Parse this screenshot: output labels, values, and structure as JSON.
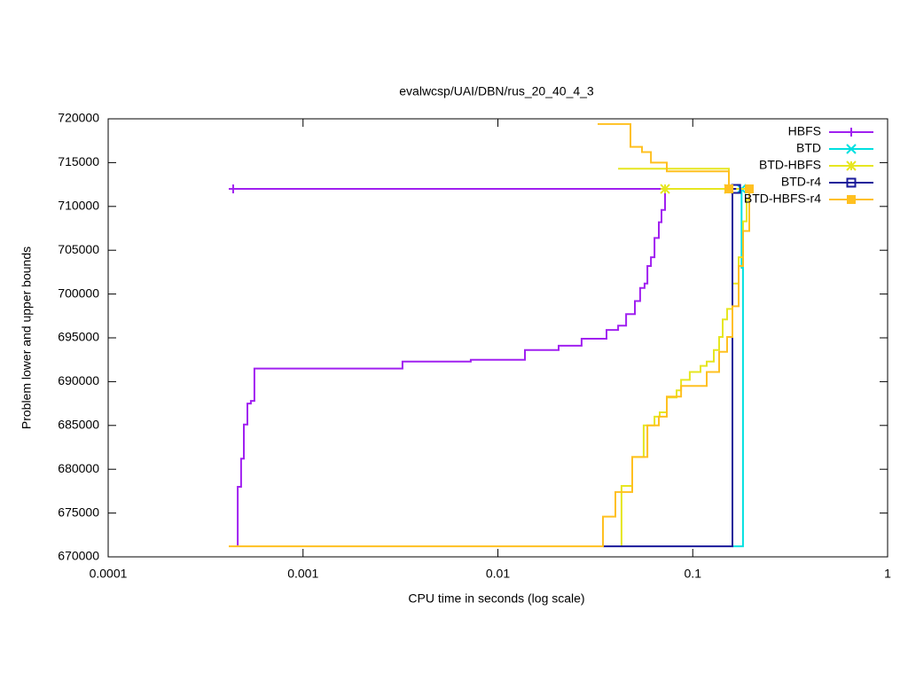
{
  "chart_data": {
    "type": "line",
    "title": "evalwcsp/UAI/DBN/rus_20_40_4_3",
    "x_label": "CPU time in seconds (log scale)",
    "y_label": "Problem lower and upper bounds",
    "x_log": true,
    "xlim": [
      0.0001,
      1
    ],
    "xticks": [
      0.0001,
      0.001,
      0.01,
      0.1,
      1
    ],
    "ylim": [
      670000,
      720000
    ],
    "yticks": [
      670000,
      675000,
      680000,
      685000,
      690000,
      695000,
      700000,
      705000,
      710000,
      715000,
      720000
    ],
    "grid": false,
    "legend": "top-right",
    "series": [
      {
        "name": "HBFS",
        "color": "#a020f0",
        "marker": "plus",
        "x": [
          0.000462,
          0.000462,
          0.000481,
          0.000481,
          0.000497,
          0.000497,
          0.000518,
          0.000518,
          0.00054,
          0.00054,
          0.000563,
          0.000563,
          0.00324,
          0.00324,
          0.00726,
          0.00726,
          0.01376,
          0.01376,
          0.0205,
          0.0205,
          0.0269,
          0.0269,
          0.0361,
          0.0361,
          0.0414,
          0.0414,
          0.0455,
          0.0455,
          0.0505,
          0.0505,
          0.0537,
          0.0537,
          0.0566,
          0.0566,
          0.0585,
          0.0585,
          0.061,
          0.061,
          0.0636,
          0.0636,
          0.067,
          0.067,
          0.0691,
          0.0691,
          0.0721,
          0.0721,
          0.000438
        ],
        "values": [
          671300,
          678000,
          678000,
          681200,
          681200,
          685100,
          685100,
          687500,
          687500,
          687800,
          687800,
          691500,
          691500,
          692300,
          692300,
          692500,
          692500,
          693600,
          693600,
          694100,
          694100,
          694900,
          694900,
          695900,
          695900,
          696400,
          696400,
          697700,
          697700,
          699200,
          699200,
          700700,
          700700,
          701200,
          701200,
          703200,
          703200,
          704200,
          704200,
          706400,
          706400,
          708200,
          708200,
          709600,
          709600,
          712000,
          712000
        ]
      },
      {
        "name": "BTD",
        "color": "#00e0e0",
        "marker": "cross",
        "x": [
          0.16,
          0.181,
          0.181,
          0.178,
          0.178
        ],
        "values": [
          671200,
          671200,
          703000,
          703000,
          712000
        ]
      },
      {
        "name": "BTD-HBFS",
        "color": "#e6e620",
        "marker": "star",
        "x": [
          0.0431,
          0.0431,
          0.0489,
          0.0489,
          0.056,
          0.056,
          0.0636,
          0.0636,
          0.0677,
          0.0677,
          0.0736,
          0.0736,
          0.0826,
          0.0826,
          0.0871,
          0.0871,
          0.0966,
          0.0966,
          0.1096,
          0.1096,
          0.118,
          0.118,
          0.1283,
          0.1283,
          0.1366,
          0.1366,
          0.1424,
          0.1424,
          0.1501,
          0.1501,
          0.1598,
          0.1598,
          0.172,
          0.172,
          0.1813,
          0.1813,
          0.189,
          0.189,
          0.195,
          0.195,
          0.0721,
          null,
          0.0414,
          0.1533,
          0.1533
        ],
        "values": [
          671200,
          678100,
          678100,
          681400,
          681400,
          685000,
          685000,
          686000,
          686000,
          686500,
          686500,
          688200,
          688200,
          689000,
          689000,
          690200,
          690200,
          691100,
          691100,
          691800,
          691800,
          692300,
          692300,
          693600,
          693600,
          695100,
          695100,
          697100,
          697100,
          698300,
          698300,
          701200,
          701200,
          704200,
          704200,
          708300,
          708300,
          710800,
          710800,
          712000,
          712000,
          null,
          714300,
          714300,
          712000
        ]
      },
      {
        "name": "BTD-r4",
        "color": "#1a1a9a",
        "marker": "square",
        "x": [
          0.0346,
          0.1598,
          0.1598,
          0.167
        ],
        "values": [
          671200,
          671200,
          712000,
          712000
        ]
      },
      {
        "name": "BTD-HBFS-r4",
        "color": "#ffc020",
        "marker": "filled-square",
        "x": [
          0.000416,
          0.0346,
          0.0346,
          0.0401,
          0.0401,
          0.0489,
          0.0489,
          0.0585,
          0.0585,
          0.067,
          0.067,
          0.0736,
          0.0736,
          0.0871,
          0.0871,
          0.118,
          0.118,
          0.1366,
          0.1366,
          0.1501,
          0.1501,
          0.1598,
          0.1598,
          0.172,
          0.172,
          0.1813,
          0.1813,
          0.195,
          0.195,
          null,
          0.0325,
          0.0479,
          0.0479,
          0.0549,
          0.0549,
          0.061,
          0.061,
          0.0736,
          0.0736,
          0.1533,
          0.1533
        ],
        "values": [
          671200,
          671200,
          674600,
          674600,
          677400,
          677400,
          681400,
          681400,
          685000,
          685000,
          686000,
          686000,
          688300,
          688300,
          689500,
          689500,
          691100,
          691100,
          693400,
          693400,
          695100,
          695100,
          698600,
          698600,
          703200,
          703200,
          707200,
          707200,
          712000,
          null,
          719400,
          719400,
          716800,
          716800,
          716200,
          716200,
          715000,
          715000,
          714000,
          714000,
          712000
        ]
      }
    ]
  }
}
